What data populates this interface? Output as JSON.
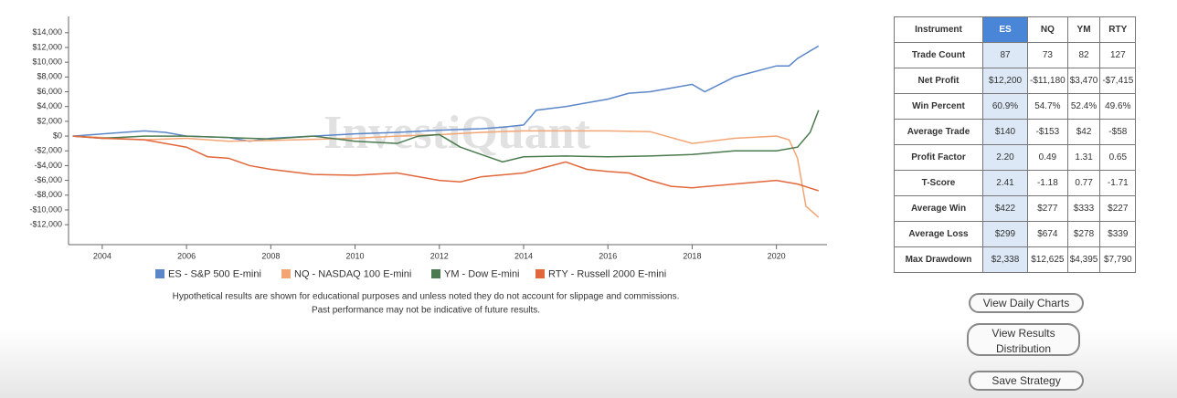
{
  "chart_data": {
    "type": "line",
    "watermark": "InvestiQuant",
    "xlim": [
      2003.2,
      2021.2
    ],
    "xticks": [
      2004,
      2006,
      2008,
      2010,
      2012,
      2014,
      2016,
      2018,
      2020
    ],
    "ylim": [
      -14700,
      16200
    ],
    "yticks": [
      {
        "value": 14000,
        "label": "$14,000"
      },
      {
        "value": 12000,
        "label": "$12,000"
      },
      {
        "value": 10000,
        "label": "$10,000"
      },
      {
        "value": 8000,
        "label": "$8,000"
      },
      {
        "value": 6000,
        "label": "$6,000"
      },
      {
        "value": 4000,
        "label": "$4,000"
      },
      {
        "value": 2000,
        "label": "$2,000"
      },
      {
        "value": 0,
        "label": "$0"
      },
      {
        "value": -2000,
        "label": "-$2,000"
      },
      {
        "value": -4000,
        "label": "-$4,000"
      },
      {
        "value": -6000,
        "label": "-$6,000"
      },
      {
        "value": -8000,
        "label": "-$8,000"
      },
      {
        "value": -10000,
        "label": "-$10,000"
      },
      {
        "value": -12000,
        "label": "-$12,000"
      }
    ],
    "series": [
      {
        "name": "ES - S&P 500 E-mini",
        "color": "#5b86c9",
        "x": [
          2003.3,
          2004.5,
          2005,
          2005.5,
          2006,
          2007,
          2007.5,
          2008,
          2009,
          2010,
          2011,
          2012,
          2013,
          2013.5,
          2014,
          2014.3,
          2015,
          2016,
          2016.5,
          2017,
          2017.5,
          2018,
          2018.3,
          2019,
          2020,
          2020.3,
          2020.5,
          2021
        ],
        "values": [
          0,
          500,
          700,
          500,
          0,
          -200,
          -700,
          -300,
          0,
          300,
          500,
          800,
          1000,
          1200,
          1500,
          3500,
          4000,
          5000,
          5800,
          6000,
          6500,
          7000,
          6000,
          8000,
          9500,
          9500,
          10500,
          12200
        ]
      },
      {
        "name": "NQ - NASDAQ 100 E-mini",
        "color": "#f4a574",
        "x": [
          2003.3,
          2004,
          2005,
          2006,
          2007,
          2008,
          2010,
          2011,
          2012,
          2013,
          2014,
          2015,
          2016,
          2017,
          2018,
          2019,
          2020,
          2020.3,
          2020.5,
          2020.7,
          2021
        ],
        "values": [
          0,
          -200,
          -500,
          -300,
          -700,
          -600,
          -300,
          0,
          200,
          500,
          700,
          700,
          700,
          600,
          -1000,
          -300,
          0,
          -500,
          -3000,
          -9500,
          -11000
        ]
      },
      {
        "name": "YM - Dow E-mini",
        "color": "#4a7a4e",
        "x": [
          2003.3,
          2004,
          2005,
          2006,
          2007,
          2008,
          2009,
          2010,
          2011,
          2011.5,
          2012,
          2012.5,
          2013,
          2013.5,
          2014,
          2015,
          2016,
          2017,
          2018,
          2019,
          2020,
          2020.5,
          2020.8,
          2021
        ],
        "values": [
          0,
          -300,
          0,
          0,
          -200,
          -400,
          0,
          -700,
          -1000,
          0,
          200,
          -1500,
          -2500,
          -3500,
          -2800,
          -2700,
          -2800,
          -2700,
          -2500,
          -2000,
          -2000,
          -1500,
          500,
          3500
        ]
      },
      {
        "name": "RTY - Russell 2000 E-mini",
        "color": "#e2673b",
        "x": [
          2003.3,
          2004,
          2005,
          2006,
          2006.5,
          2007,
          2007.5,
          2008,
          2009,
          2010,
          2011,
          2012,
          2012.5,
          2013,
          2014,
          2015,
          2015.5,
          2016,
          2016.5,
          2017,
          2017.5,
          2018,
          2019,
          2020,
          2020.5,
          2021
        ],
        "values": [
          0,
          -300,
          -500,
          -1500,
          -2800,
          -3000,
          -4000,
          -4500,
          -5200,
          -5300,
          -5000,
          -6000,
          -6200,
          -5500,
          -5000,
          -3500,
          -4500,
          -4800,
          -5000,
          -6000,
          -6800,
          -7000,
          -6500,
          -6000,
          -6500,
          -7400
        ]
      }
    ]
  },
  "disclaimer": [
    "Hypothetical results are shown for educational purposes and unless noted they do not account for slippage and commissions.",
    "Past performance may not be indicative of future results."
  ],
  "table": {
    "header": [
      "Instrument",
      "ES",
      "NQ",
      "YM",
      "RTY"
    ],
    "rows": [
      [
        "Trade Count",
        "87",
        "73",
        "82",
        "127"
      ],
      [
        "Net Profit",
        "$12,200",
        "-$11,180",
        "$3,470",
        "-$7,415"
      ],
      [
        "Win Percent",
        "60.9%",
        "54.7%",
        "52.4%",
        "49.6%"
      ],
      [
        "Average Trade",
        "$140",
        "-$153",
        "$42",
        "-$58"
      ],
      [
        "Profit Factor",
        "2.20",
        "0.49",
        "1.31",
        "0.65"
      ],
      [
        "T-Score",
        "2.41",
        "-1.18",
        "0.77",
        "-1.71"
      ],
      [
        "Average Win",
        "$422",
        "$277",
        "$333",
        "$227"
      ],
      [
        "Average Loss",
        "$299",
        "$674",
        "$278",
        "$339"
      ],
      [
        "Max Drawdown",
        "$2,338",
        "$12,625",
        "$4,395",
        "$7,790"
      ]
    ]
  },
  "buttons": [
    "View Daily Charts",
    "View Results Distribution",
    "Save Strategy"
  ]
}
